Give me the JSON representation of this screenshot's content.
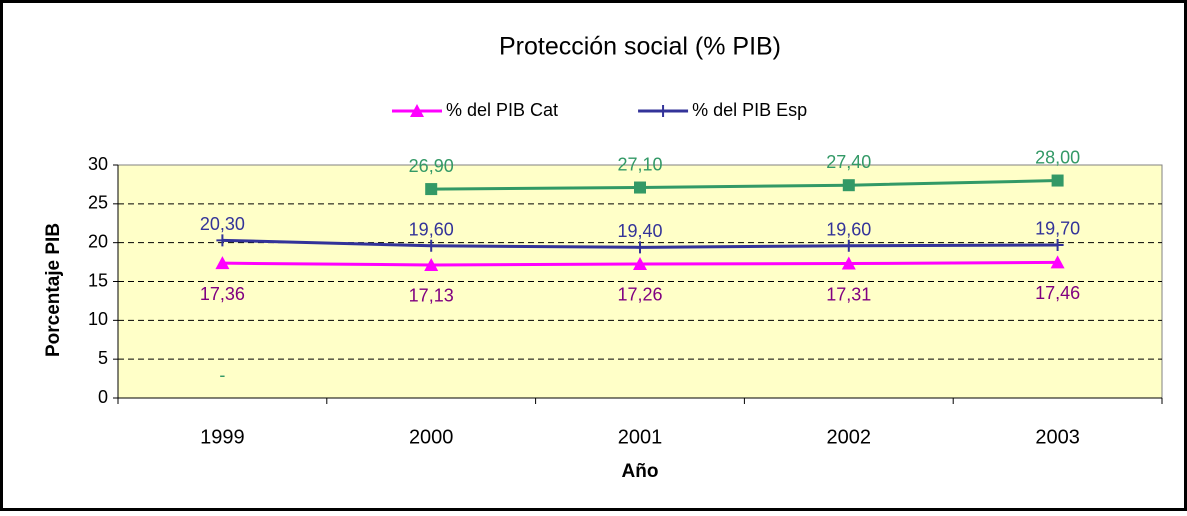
{
  "chart_data": {
    "type": "line",
    "title": "Protección social (%  PIB)",
    "x_label": "Año",
    "y_label": "Porcentaje PIB",
    "categories": [
      "1999",
      "2000",
      "2001",
      "2002",
      "2003"
    ],
    "series": [
      {
        "name": "% del PIB Cat",
        "color": "#ff00ff",
        "marker": "triangle",
        "label_color": "#800080",
        "values": [
          17.36,
          17.13,
          17.26,
          17.31,
          17.46
        ],
        "value_labels": [
          "17,36",
          "17,13",
          "17,26",
          "17,31",
          "17,46"
        ]
      },
      {
        "name": "% del PIB Esp",
        "color": "#333399",
        "marker": "plus",
        "label_color": "#333399",
        "values": [
          20.3,
          19.6,
          19.4,
          19.6,
          19.7
        ],
        "value_labels": [
          "20,30",
          "19,60",
          "19,40",
          "19,60",
          "19,70"
        ]
      },
      {
        "color": "#339966",
        "marker": "square",
        "label_color": "#339966",
        "values": [
          null,
          26.9,
          27.1,
          27.4,
          28.0
        ],
        "value_labels": [
          "-",
          "26,90",
          "27,10",
          "27,40",
          "28,00"
        ]
      }
    ],
    "ylim": [
      0,
      30
    ],
    "yticks": [
      0,
      5,
      10,
      15,
      20,
      25,
      30
    ],
    "grid": true,
    "legend": "top"
  }
}
